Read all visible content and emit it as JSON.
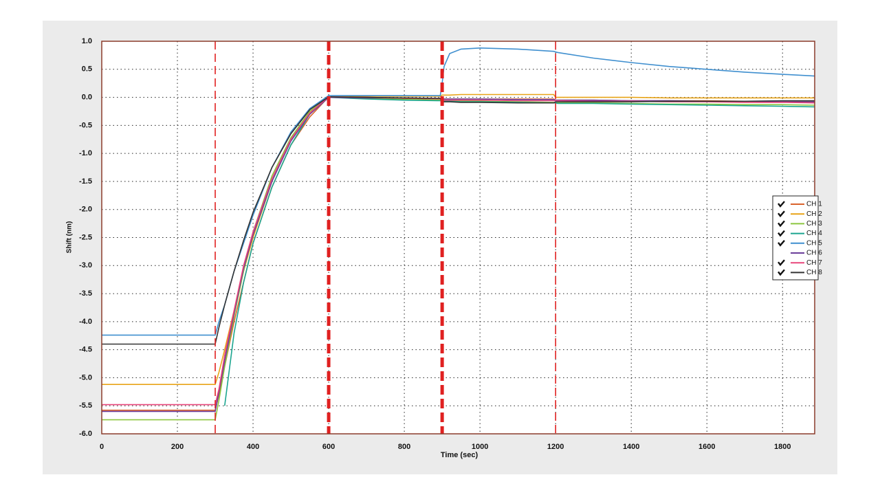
{
  "chart_data": {
    "type": "line",
    "xlabel": "Time (sec)",
    "ylabel": "Shift (nm)",
    "xlim": [
      0,
      1885
    ],
    "ylim": [
      -6.0,
      1.0
    ],
    "xticks": [
      0,
      200,
      400,
      600,
      800,
      1000,
      1200,
      1400,
      1600,
      1800
    ],
    "yticks": [
      {
        "value": 1.0,
        "label": "1.0"
      },
      {
        "value": 0.5,
        "label": "0.5"
      },
      {
        "value": 0.0,
        "label": "0.0"
      },
      {
        "value": -0.5,
        "label": "-0.5"
      },
      {
        "value": -1.0,
        "label": "-1.0"
      },
      {
        "value": -1.5,
        "label": "-1.5"
      },
      {
        "value": -2.0,
        "label": "-2.0"
      },
      {
        "value": -2.5,
        "label": "-2.5"
      },
      {
        "value": -3.0,
        "label": "-3.0"
      },
      {
        "value": -3.5,
        "label": "-3.5"
      },
      {
        "value": -4.0,
        "label": "-4.0"
      },
      {
        "value": -4.5,
        "label": "-4.5"
      },
      {
        "value": -5.0,
        "label": "-5.0"
      },
      {
        "value": -5.5,
        "label": "-5.5"
      },
      {
        "value": -6.0,
        "label": "-6.0"
      }
    ],
    "grid": true,
    "legend": "right",
    "markers": [
      {
        "x": 300,
        "style": "thin"
      },
      {
        "x": 600,
        "style": "thick"
      },
      {
        "x": 900,
        "style": "thick"
      },
      {
        "x": 1200,
        "style": "thin"
      }
    ],
    "marker_color": "#e02020",
    "x": [
      0,
      295,
      300,
      310,
      325,
      350,
      375,
      400,
      450,
      500,
      550,
      600,
      700,
      800,
      895,
      900,
      905,
      920,
      950,
      1000,
      1100,
      1195,
      1200,
      1205,
      1300,
      1400,
      1500,
      1600,
      1700,
      1800,
      1885
    ],
    "series": [
      {
        "name": "CH 1",
        "color": "#d9622b",
        "checked": true,
        "values": [
          -5.58,
          -5.58,
          -5.58,
          -5.3,
          -4.8,
          -4.0,
          -3.3,
          -2.6,
          -1.6,
          -0.85,
          -0.35,
          0.01,
          0.0,
          -0.02,
          -0.03,
          -0.03,
          -0.03,
          -0.03,
          -0.03,
          -0.03,
          -0.03,
          -0.03,
          -0.05,
          -0.05,
          -0.05,
          -0.06,
          -0.06,
          -0.06,
          -0.07,
          -0.07,
          -0.07
        ]
      },
      {
        "name": "CH 2",
        "color": "#e8a317",
        "checked": true,
        "values": [
          -5.12,
          -5.12,
          -5.12,
          -4.9,
          -4.5,
          -3.8,
          -3.1,
          -2.5,
          -1.5,
          -0.75,
          -0.28,
          0.01,
          0.02,
          0.02,
          0.02,
          0.04,
          0.04,
          0.04,
          0.05,
          0.05,
          0.05,
          0.05,
          0.0,
          0.0,
          0.0,
          0.0,
          -0.01,
          -0.01,
          -0.01,
          -0.01,
          -0.01
        ]
      },
      {
        "name": "CH 3",
        "color": "#8cc63f",
        "checked": true,
        "values": [
          -5.75,
          -5.75,
          -5.75,
          -5.4,
          -4.8,
          -3.9,
          -3.1,
          -2.4,
          -1.4,
          -0.72,
          -0.25,
          0.0,
          -0.02,
          -0.04,
          -0.05,
          -0.06,
          -0.06,
          -0.06,
          -0.07,
          -0.07,
          -0.08,
          -0.09,
          -0.1,
          -0.1,
          -0.1,
          -0.11,
          -0.12,
          -0.12,
          -0.13,
          -0.13,
          -0.14
        ]
      },
      {
        "name": "CH 4",
        "color": "#1aa58f",
        "checked": true,
        "values": [
          null,
          null,
          null,
          null,
          -5.5,
          -4.2,
          -3.3,
          -2.6,
          -1.6,
          -0.85,
          -0.3,
          0.0,
          -0.03,
          -0.05,
          -0.06,
          -0.07,
          -0.07,
          -0.07,
          -0.08,
          -0.08,
          -0.09,
          -0.1,
          -0.1,
          -0.11,
          -0.11,
          -0.12,
          -0.13,
          -0.14,
          -0.15,
          -0.16,
          -0.17
        ]
      },
      {
        "name": "CH 5",
        "color": "#3f8fcf",
        "checked": true,
        "values": [
          -4.24,
          -4.24,
          -4.24,
          -4.0,
          -3.7,
          -3.1,
          -2.6,
          -2.1,
          -1.25,
          -0.62,
          -0.2,
          0.03,
          0.03,
          0.03,
          0.03,
          0.25,
          0.55,
          0.78,
          0.86,
          0.88,
          0.86,
          0.82,
          0.81,
          0.8,
          0.7,
          0.62,
          0.55,
          0.5,
          0.45,
          0.41,
          0.38
        ]
      },
      {
        "name": "CH 6",
        "color": "#6a3d9a",
        "checked": false,
        "values": [
          -5.6,
          -5.6,
          -5.6,
          -5.25,
          -4.7,
          -3.85,
          -3.05,
          -2.45,
          -1.5,
          -0.78,
          -0.3,
          0.0,
          -0.01,
          -0.01,
          -0.02,
          -0.03,
          -0.03,
          -0.03,
          -0.03,
          -0.03,
          -0.04,
          -0.04,
          -0.05,
          -0.05,
          -0.05,
          -0.06,
          -0.06,
          -0.07,
          -0.07,
          -0.08,
          -0.08
        ]
      },
      {
        "name": "CH 7",
        "color": "#e8457a",
        "checked": true,
        "values": [
          -5.48,
          -5.48,
          -5.48,
          -5.2,
          -4.6,
          -3.8,
          -3.0,
          -2.4,
          -1.45,
          -0.75,
          -0.28,
          0.01,
          0.0,
          -0.01,
          -0.02,
          -0.05,
          -0.05,
          -0.05,
          -0.05,
          -0.05,
          -0.06,
          -0.06,
          -0.06,
          -0.06,
          -0.07,
          -0.07,
          -0.08,
          -0.08,
          -0.09,
          -0.09,
          -0.1
        ]
      },
      {
        "name": "CH 8",
        "color": "#333333",
        "checked": true,
        "values": [
          -4.4,
          -4.4,
          -4.4,
          -4.1,
          -3.7,
          -3.1,
          -2.55,
          -2.05,
          -1.25,
          -0.65,
          -0.22,
          0.01,
          0.0,
          -0.01,
          -0.02,
          -0.08,
          -0.08,
          -0.08,
          -0.09,
          -0.09,
          -0.1,
          -0.1,
          -0.08,
          -0.08,
          -0.08,
          -0.08,
          -0.07,
          -0.07,
          -0.07,
          -0.06,
          -0.06
        ]
      }
    ]
  }
}
